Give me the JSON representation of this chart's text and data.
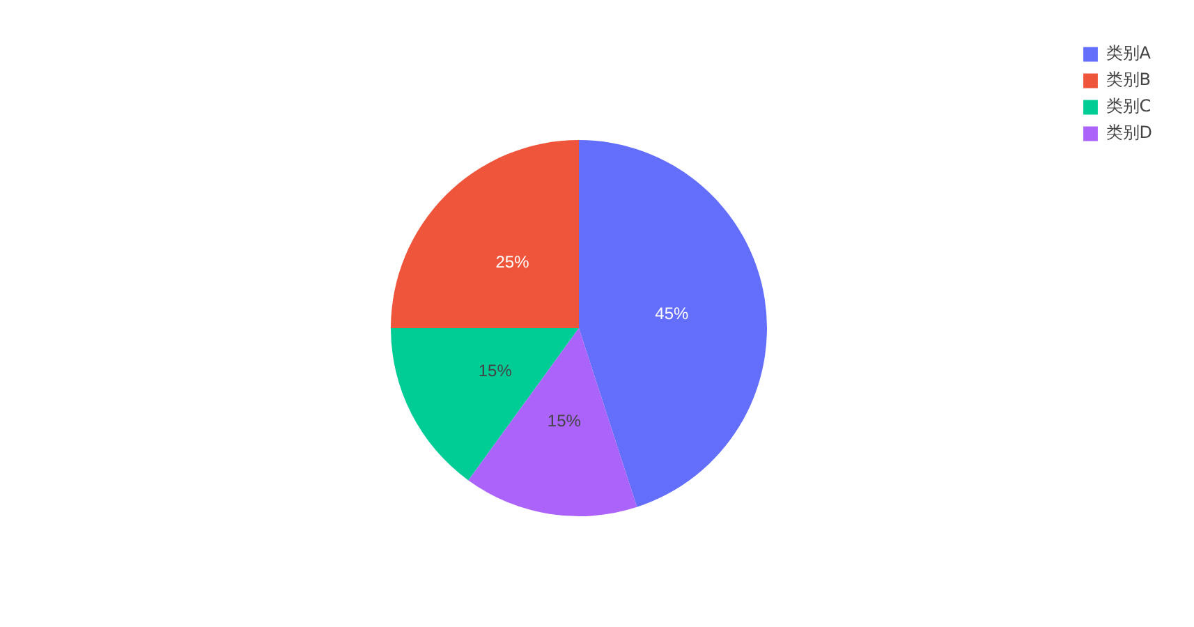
{
  "chart_data": {
    "type": "pie",
    "categories": [
      "类别A",
      "类别B",
      "类别C",
      "类别D"
    ],
    "values": [
      45,
      25,
      15,
      15
    ],
    "colors": [
      "#636efa",
      "#ef553b",
      "#00cc96",
      "#ab63fa"
    ],
    "value_labels": [
      "45%",
      "25%",
      "15%",
      "15%"
    ],
    "legend": "top right"
  }
}
